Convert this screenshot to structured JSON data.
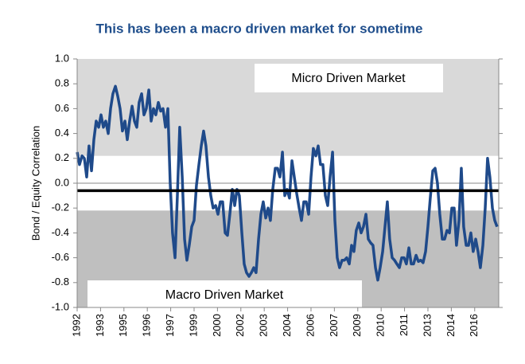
{
  "chart_data": {
    "type": "line",
    "title": "This has been a macro driven market for sometime",
    "y_label": "Bond / Equity Correlation",
    "annotations": [
      "Micro Driven Market",
      "Macro Driven Market"
    ],
    "reference_line": -0.06,
    "bands": [
      0.22,
      -0.22
    ],
    "ylim": [
      -1.0,
      1.0
    ],
    "yticks": [
      {
        "value": 1.0,
        "label": "1.0"
      },
      0.8,
      0.6,
      0.4,
      0.2,
      {
        "value": 0.0,
        "label": "0.0"
      },
      -0.2,
      -0.4,
      -0.6,
      -0.8,
      {
        "value": -1.0,
        "label": "-1.0"
      }
    ],
    "xlim": [
      1992,
      2017.24
    ],
    "xticks": [
      {
        "value": 1992,
        "label": "1992"
      },
      {
        "value": 1993.4,
        "label": "1993"
      },
      {
        "value": 1994.8,
        "label": "1995"
      },
      {
        "value": 1996.2,
        "label": "1996"
      },
      {
        "value": 1997.6,
        "label": "1997"
      },
      {
        "value": 1999.0,
        "label": "1999"
      },
      {
        "value": 2000.4,
        "label": "2000"
      },
      {
        "value": 2001.8,
        "label": "2002"
      },
      {
        "value": 2003.2,
        "label": "2003"
      },
      {
        "value": 2004.6,
        "label": "2004"
      },
      {
        "value": 2006.0,
        "label": "2006"
      },
      {
        "value": 2007.4,
        "label": "2007"
      },
      {
        "value": 2008.8,
        "label": "2009"
      },
      {
        "value": 2010.2,
        "label": "2010"
      },
      {
        "value": 2011.6,
        "label": "2011"
      },
      {
        "value": 2013.0,
        "label": "2013"
      },
      {
        "value": 2014.4,
        "label": "2014"
      },
      {
        "value": 2015.8,
        "label": "2016"
      }
    ],
    "x": [
      1992,
      1992.14,
      1992.29,
      1992.43,
      1992.57,
      1992.71,
      1992.86,
      1993,
      1993.14,
      1993.29,
      1993.43,
      1993.57,
      1993.71,
      1993.86,
      1994,
      1994.14,
      1994.29,
      1994.43,
      1994.57,
      1994.71,
      1994.86,
      1995,
      1995.14,
      1995.29,
      1995.43,
      1995.57,
      1995.71,
      1995.86,
      1996,
      1996.14,
      1996.29,
      1996.43,
      1996.57,
      1996.71,
      1996.86,
      1997,
      1997.14,
      1997.29,
      1997.43,
      1997.57,
      1997.71,
      1997.86,
      1998,
      1998.14,
      1998.29,
      1998.43,
      1998.57,
      1998.71,
      1998.86,
      1999,
      1999.14,
      1999.29,
      1999.43,
      1999.57,
      1999.71,
      1999.86,
      2000,
      2000.14,
      2000.29,
      2000.43,
      2000.57,
      2000.71,
      2000.86,
      2001,
      2001.14,
      2001.29,
      2001.43,
      2001.57,
      2001.71,
      2001.86,
      2002,
      2002.14,
      2002.29,
      2002.43,
      2002.57,
      2002.71,
      2002.86,
      2003,
      2003.14,
      2003.29,
      2003.43,
      2003.57,
      2003.71,
      2003.86,
      2004,
      2004.14,
      2004.29,
      2004.43,
      2004.57,
      2004.71,
      2004.86,
      2005,
      2005.14,
      2005.29,
      2005.43,
      2005.57,
      2005.71,
      2005.86,
      2006,
      2006.14,
      2006.29,
      2006.43,
      2006.57,
      2006.71,
      2006.86,
      2007,
      2007.14,
      2007.29,
      2007.43,
      2007.57,
      2007.71,
      2007.86,
      2008,
      2008.14,
      2008.29,
      2008.43,
      2008.57,
      2008.71,
      2008.86,
      2009,
      2009.14,
      2009.29,
      2009.43,
      2009.57,
      2009.71,
      2009.86,
      2010,
      2010.14,
      2010.29,
      2010.43,
      2010.57,
      2010.71,
      2010.86,
      2011,
      2011.14,
      2011.29,
      2011.43,
      2011.57,
      2011.71,
      2011.86,
      2012,
      2012.14,
      2012.29,
      2012.43,
      2012.57,
      2012.71,
      2012.86,
      2013,
      2013.14,
      2013.29,
      2013.43,
      2013.57,
      2013.71,
      2013.86,
      2014,
      2014.14,
      2014.29,
      2014.43,
      2014.57,
      2014.71,
      2014.86,
      2015,
      2015.14,
      2015.29,
      2015.43,
      2015.57,
      2015.71,
      2015.86,
      2016,
      2016.14,
      2016.29,
      2016.43,
      2016.57,
      2016.71,
      2016.86,
      2017,
      2017.14
    ],
    "series": [
      {
        "name": "Bond / Equity Correlation",
        "color": "#1f4a8a",
        "values": [
          0.25,
          0.15,
          0.22,
          0.2,
          0.05,
          0.3,
          0.1,
          0.35,
          0.5,
          0.45,
          0.55,
          0.45,
          0.5,
          0.4,
          0.6,
          0.72,
          0.78,
          0.7,
          0.6,
          0.42,
          0.5,
          0.35,
          0.5,
          0.62,
          0.5,
          0.45,
          0.65,
          0.72,
          0.55,
          0.6,
          0.75,
          0.5,
          0.6,
          0.55,
          0.65,
          0.58,
          0.6,
          0.45,
          0.6,
          0.0,
          -0.4,
          -0.6,
          -0.1,
          0.45,
          0.05,
          -0.45,
          -0.62,
          -0.5,
          -0.35,
          -0.3,
          -0.02,
          0.15,
          0.3,
          0.42,
          0.3,
          0.05,
          -0.1,
          -0.2,
          -0.18,
          -0.25,
          -0.15,
          -0.15,
          -0.4,
          -0.42,
          -0.25,
          -0.05,
          -0.18,
          -0.05,
          -0.1,
          -0.4,
          -0.65,
          -0.72,
          -0.75,
          -0.72,
          -0.68,
          -0.72,
          -0.45,
          -0.25,
          -0.15,
          -0.28,
          -0.2,
          -0.3,
          -0.05,
          0.12,
          0.12,
          0.05,
          0.25,
          -0.1,
          -0.05,
          -0.12,
          0.18,
          0.05,
          -0.08,
          -0.2,
          -0.3,
          -0.15,
          -0.15,
          -0.25,
          0.05,
          0.28,
          0.22,
          0.3,
          0.15,
          0.15,
          -0.1,
          -0.18,
          0.05,
          0.25,
          -0.3,
          -0.6,
          -0.68,
          -0.62,
          -0.62,
          -0.6,
          -0.65,
          -0.5,
          -0.55,
          -0.38,
          -0.32,
          -0.4,
          -0.35,
          -0.25,
          -0.45,
          -0.48,
          -0.5,
          -0.68,
          -0.78,
          -0.68,
          -0.55,
          -0.35,
          -0.15,
          -0.45,
          -0.6,
          -0.62,
          -0.65,
          -0.68,
          -0.6,
          -0.6,
          -0.65,
          -0.52,
          -0.65,
          -0.65,
          -0.58,
          -0.63,
          -0.62,
          -0.64,
          -0.55,
          -0.35,
          -0.12,
          0.1,
          0.12,
          0.0,
          -0.25,
          -0.45,
          -0.45,
          -0.38,
          -0.4,
          -0.2,
          -0.2,
          -0.5,
          -0.3,
          0.12,
          -0.35,
          -0.5,
          -0.5,
          -0.4,
          -0.55,
          -0.45,
          -0.55,
          -0.68,
          -0.5,
          -0.2,
          0.2,
          0.05,
          -0.2,
          -0.3,
          -0.35
        ]
      }
    ]
  }
}
